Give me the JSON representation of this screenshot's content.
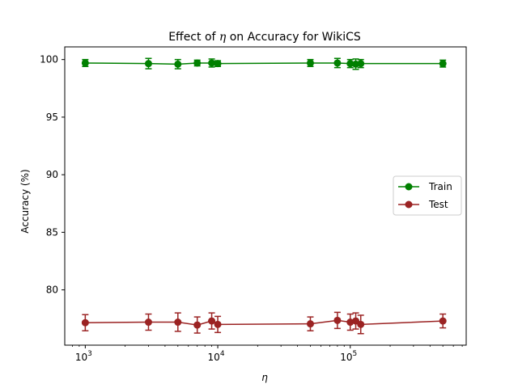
{
  "chart_data": {
    "type": "line",
    "title_prefix": "Effect of ",
    "title_symbol": "η",
    "title_suffix": " on Accuracy for WikiCS",
    "xlabel": "η",
    "ylabel": "Accuracy (%)",
    "xscale": "log",
    "xlim": [
      700,
      750000
    ],
    "ylim": [
      75.2,
      101.1
    ],
    "yticks": [
      80,
      85,
      90,
      95,
      100
    ],
    "yticklabels": [
      "80",
      "85",
      "90",
      "95",
      "100"
    ],
    "xticks": [
      {
        "value": 1000,
        "base": "10",
        "exp": "3"
      },
      {
        "value": 10000,
        "base": "10",
        "exp": "4"
      },
      {
        "value": 100000,
        "base": "10",
        "exp": "5"
      }
    ],
    "x": [
      1000,
      3000,
      5000,
      7000,
      9000,
      10000,
      50000,
      80000,
      100000,
      110000,
      120000,
      500000
    ],
    "series": [
      {
        "name": "Train",
        "color": "#008000",
        "values": [
          99.7,
          99.65,
          99.6,
          99.7,
          99.7,
          99.65,
          99.7,
          99.7,
          99.65,
          99.6,
          99.65,
          99.65
        ],
        "errors": [
          0.3,
          0.45,
          0.4,
          0.25,
          0.35,
          0.25,
          0.3,
          0.4,
          0.35,
          0.45,
          0.35,
          0.3
        ]
      },
      {
        "name": "Test",
        "color": "#9b2323",
        "values": [
          77.15,
          77.2,
          77.2,
          76.95,
          77.3,
          77.0,
          77.05,
          77.35,
          77.2,
          77.3,
          77.0,
          77.3
        ],
        "errors": [
          0.7,
          0.7,
          0.8,
          0.7,
          0.7,
          0.7,
          0.6,
          0.7,
          0.7,
          0.7,
          0.8,
          0.6
        ]
      }
    ],
    "legend_position": "center-right",
    "grid": false
  }
}
